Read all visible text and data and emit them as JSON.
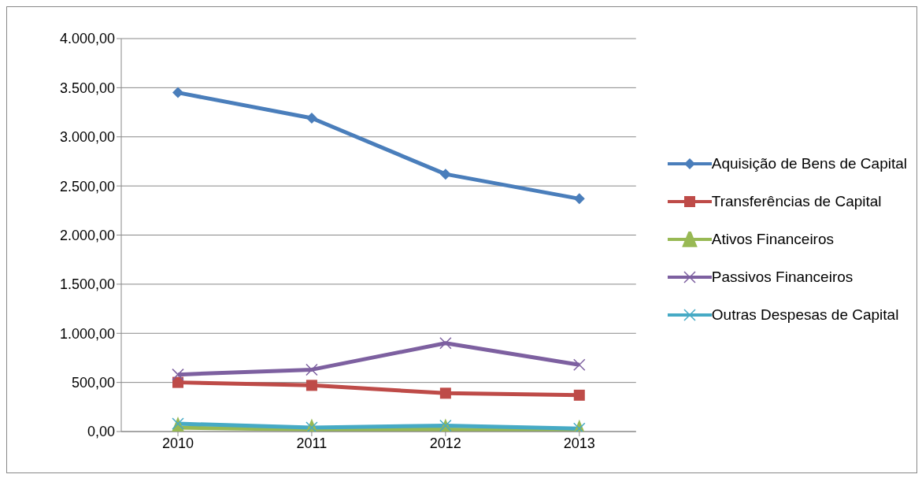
{
  "chart_data": {
    "type": "line",
    "categories": [
      "2010",
      "2011",
      "2012",
      "2013"
    ],
    "series": [
      {
        "name": "Aquisição de Bens de Capital",
        "color": "#4a7ebb",
        "marker": "diamond",
        "values": [
          3450,
          3190,
          2620,
          2370
        ]
      },
      {
        "name": "Transferências de Capital",
        "color": "#be4b48",
        "marker": "square",
        "values": [
          500,
          470,
          390,
          370
        ]
      },
      {
        "name": "Ativos Financeiros",
        "color": "#98b954",
        "marker": "triangle",
        "values": [
          40,
          20,
          20,
          10
        ]
      },
      {
        "name": "Passivos Financeiros",
        "color": "#7d60a0",
        "marker": "cross",
        "values": [
          580,
          630,
          900,
          680
        ]
      },
      {
        "name": "Outras Despesas de Capital",
        "color": "#46aac5",
        "marker": "cross",
        "values": [
          80,
          40,
          60,
          30
        ]
      }
    ],
    "ylim": [
      0,
      4000
    ],
    "yticks": [
      {
        "value": 0,
        "label": "0,00"
      },
      {
        "value": 500,
        "label": "500,00"
      },
      {
        "value": 1000,
        "label": "1.000,00"
      },
      {
        "value": 1500,
        "label": "1.500,00"
      },
      {
        "value": 2000,
        "label": "2.000,00"
      },
      {
        "value": 2500,
        "label": "2.500,00"
      },
      {
        "value": 3000,
        "label": "3.000,00"
      },
      {
        "value": 3500,
        "label": "3.500,00"
      },
      {
        "value": 4000,
        "label": "4.000,00"
      }
    ],
    "grid": "y",
    "legend": "right"
  }
}
